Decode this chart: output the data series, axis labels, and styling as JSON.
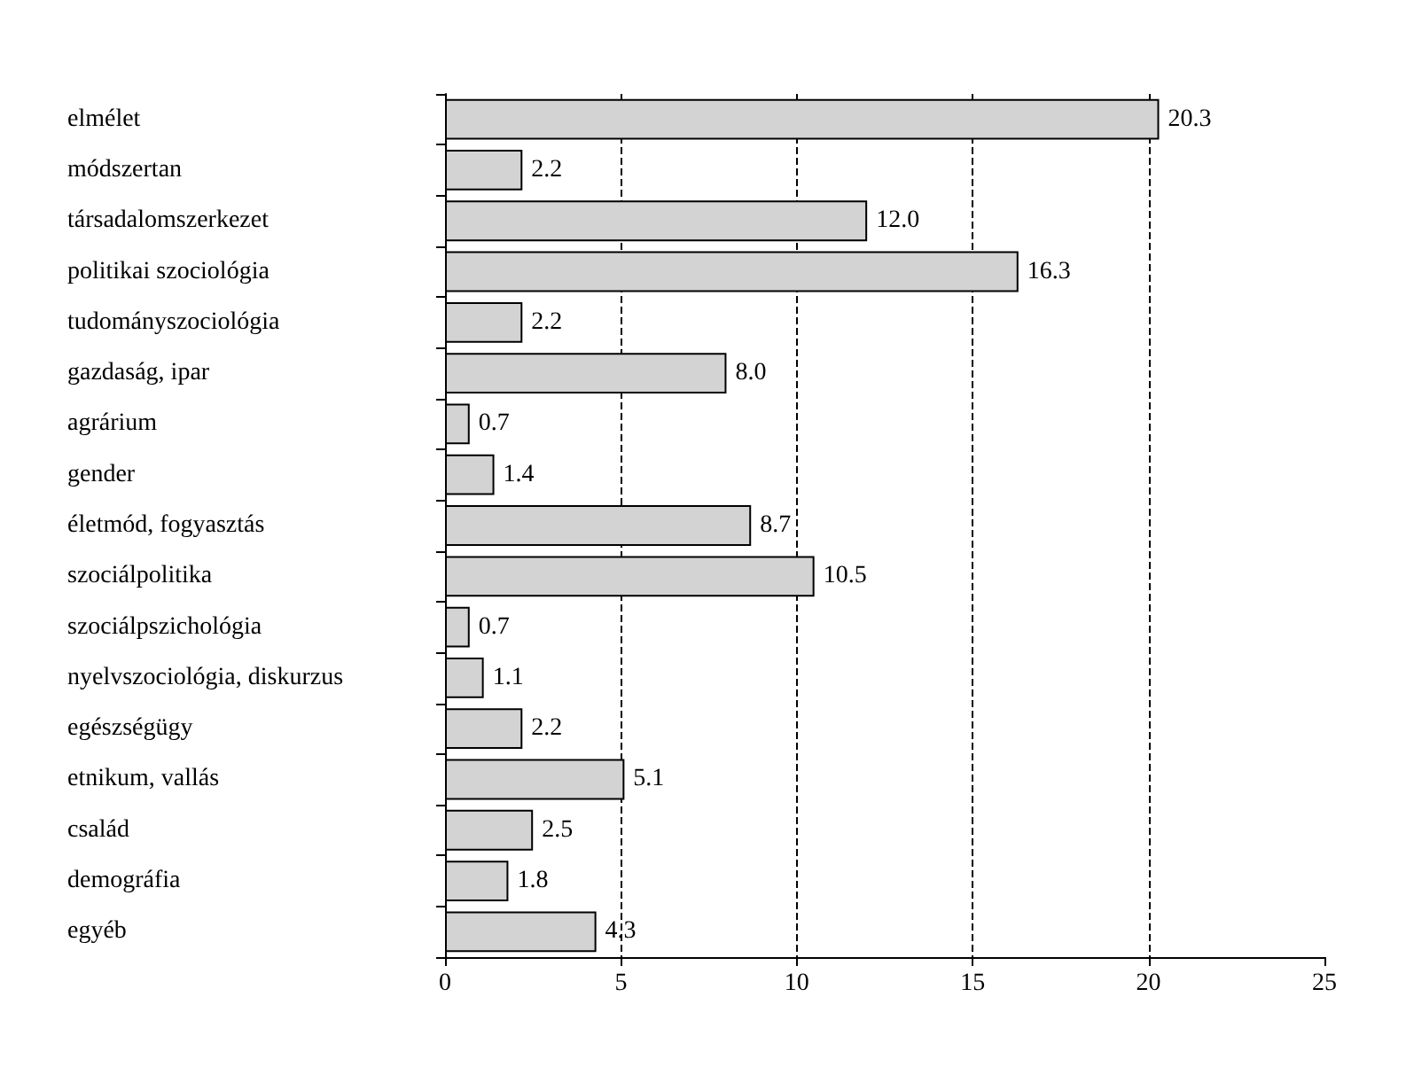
{
  "chart_data": {
    "type": "bar",
    "orientation": "horizontal",
    "categories": [
      "elmélet",
      "módszertan",
      "társadalomszerkezet",
      "politikai szociológia",
      "tudományszociológia",
      "gazdaság, ipar",
      "agrárium",
      "gender",
      "életmód, fogyasztás",
      "szociálpolitika",
      "szociálpszichológia",
      "nyelvszociológia, diskurzus",
      "egészségügy",
      "etnikum, vallás",
      "család",
      "demográfia",
      "egyéb"
    ],
    "values": [
      20.3,
      2.2,
      12.0,
      16.3,
      2.2,
      8.0,
      0.7,
      1.4,
      8.7,
      10.5,
      0.7,
      1.1,
      2.2,
      5.1,
      2.5,
      1.8,
      4.3
    ],
    "value_labels": [
      "20.3",
      "2.2",
      "12.0",
      "16.3",
      "2.2",
      "8.0",
      "0.7",
      "1.4",
      "8.7",
      "10.5",
      "0.7",
      "1.1",
      "2.2",
      "5.1",
      "2.5",
      "1.8",
      "4.3"
    ],
    "color": "#d3d3d3",
    "xlim": [
      0,
      25
    ],
    "xticks": [
      0,
      5,
      10,
      15,
      20,
      25
    ],
    "grid": "x"
  }
}
